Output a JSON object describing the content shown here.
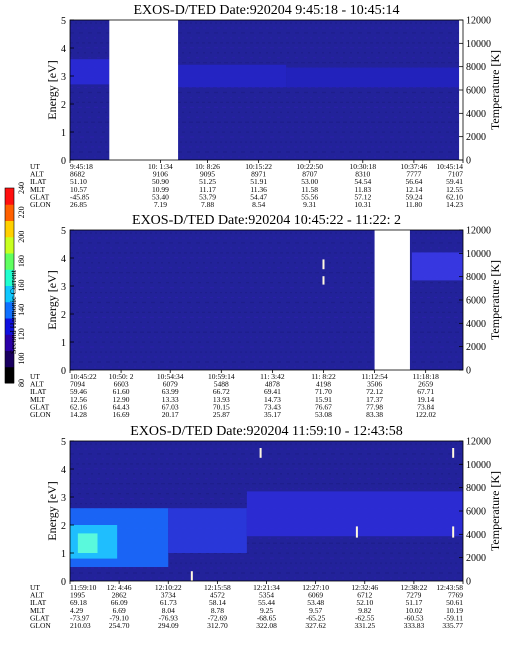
{
  "colorbar": {
    "label": "Second Harmonic Current",
    "ticks": [
      "80",
      "100",
      "120",
      "140",
      "160",
      "180",
      "200",
      "220",
      "240"
    ],
    "colors": [
      "#000000",
      "#1a0060",
      "#2b00a8",
      "#1010e0",
      "#1070ff",
      "#10c8ff",
      "#20ffd0",
      "#60ff60",
      "#c8ff20",
      "#ffd000",
      "#ff6000",
      "#ff1010"
    ]
  },
  "panels": [
    {
      "title": "EXOS-D/TED   Date:920204   9:45:18 - 10:45:14",
      "ylabel": "Energy [eV]",
      "y2label": "Temperature [K]",
      "yticks": [
        "0",
        "1",
        "2",
        "3",
        "4",
        "5"
      ],
      "y2ticks": [
        "0",
        "2000",
        "4000",
        "6000",
        "8000",
        "10000",
        "12000"
      ],
      "gaps": [
        [
          0.1,
          0.275
        ],
        [
          0.99,
          1.0
        ]
      ],
      "bands": [
        {
          "x": [
            0.0,
            0.1
          ],
          "e0": 2.7,
          "e1": 3.6,
          "color": "#2a2ad8"
        },
        {
          "x": [
            0.275,
            0.55
          ],
          "e0": 2.6,
          "e1": 3.4,
          "color": "#2525c8"
        },
        {
          "x": [
            0.55,
            0.99
          ],
          "e0": 2.6,
          "e1": 3.3,
          "color": "#2222c0"
        }
      ],
      "spikes": [],
      "table": {
        "labels": [
          "UT",
          "ALT",
          "ILAT",
          "MLT",
          "GLAT",
          "GLON"
        ],
        "columns": [
          {
            "x": 0.0,
            "values": [
              "9:45:18",
              "8682",
              "51.10",
              "10.57",
              "-45.85",
              "26.85"
            ]
          },
          {
            "x": 0.23,
            "values": [
              "10: 1:34",
              "9106",
              "50.90",
              "10.99",
              "53.40",
              "7.19"
            ]
          },
          {
            "x": 0.35,
            "values": [
              "10: 8:26",
              "9095",
              "51.25",
              "11.17",
              "53.79",
              "7.88"
            ]
          },
          {
            "x": 0.48,
            "values": [
              "10:15:22",
              "8971",
              "51.91",
              "11.36",
              "54.47",
              "8.54"
            ]
          },
          {
            "x": 0.61,
            "values": [
              "10:22:50",
              "8707",
              "53.00",
              "11.58",
              "55.56",
              "9.31"
            ]
          },
          {
            "x": 0.745,
            "values": [
              "10:30:18",
              "8310",
              "54.54",
              "11.83",
              "57.12",
              "10.31"
            ]
          },
          {
            "x": 0.875,
            "values": [
              "10:37:46",
              "7777",
              "56.64",
              "12.14",
              "59.24",
              "11.80"
            ]
          },
          {
            "x": 1.0,
            "values": [
              "10:45:14",
              "7107",
              "59.41",
              "12.55",
              "62.10",
              "14.23"
            ]
          }
        ]
      }
    },
    {
      "title": "EXOS-D/TED   Date:920204   10:45:22 - 11:22: 2",
      "ylabel": "Energy [eV]",
      "y2label": "Temperature [K]",
      "yticks": [
        "0",
        "1",
        "2",
        "3",
        "4",
        "5"
      ],
      "y2ticks": [
        "0",
        "2000",
        "4000",
        "6000",
        "8000",
        "10000",
        "12000"
      ],
      "gaps": [
        [
          0.775,
          0.865
        ]
      ],
      "bands": [
        {
          "x": [
            0.87,
            1.0
          ],
          "e0": 3.2,
          "e1": 4.2,
          "color": "#3a3ae8"
        }
      ],
      "spikes": [
        {
          "x": 0.645,
          "e0": 3.6,
          "e1": 3.95
        },
        {
          "x": 0.645,
          "e0": 3.05,
          "e1": 3.35
        }
      ],
      "table": {
        "labels": [
          "UT",
          "ALT",
          "ILAT",
          "MLT",
          "GLAT",
          "GLON"
        ],
        "columns": [
          {
            "x": 0.0,
            "values": [
              "10:45:22",
              "7094",
              "59.46",
              "12.56",
              "62.16",
              "14.28"
            ]
          },
          {
            "x": 0.13,
            "values": [
              "10:50: 2",
              "6603",
              "61.60",
              "12.90",
              "64.43",
              "16.69"
            ]
          },
          {
            "x": 0.255,
            "values": [
              "10:54:34",
              "6079",
              "63.99",
              "13.33",
              "67.03",
              "20.17"
            ]
          },
          {
            "x": 0.385,
            "values": [
              "10:59:14",
              "5488",
              "66.72",
              "13.93",
              "70.15",
              "25.87"
            ]
          },
          {
            "x": 0.515,
            "values": [
              "11: 3:42",
              "4878",
              "69.41",
              "14.73",
              "73.43",
              "35.17"
            ]
          },
          {
            "x": 0.645,
            "values": [
              "11: 8:22",
              "4198",
              "71.70",
              "15.91",
              "76.67",
              "53.08"
            ]
          },
          {
            "x": 0.775,
            "values": [
              "11:12:54",
              "3506",
              "72.12",
              "17.37",
              "77.98",
              "83.38"
            ]
          },
          {
            "x": 0.905,
            "values": [
              "11:18:18",
              "2659",
              "67.71",
              "19.14",
              "73.84",
              "122.02"
            ]
          }
        ]
      }
    },
    {
      "title": "EXOS-D/TED   Date:920204   11:59:10 - 12:43:58",
      "ylabel": "Energy [eV]",
      "y2label": "Temperature [K]",
      "yticks": [
        "0",
        "1",
        "2",
        "3",
        "4",
        "5"
      ],
      "y2ticks": [
        "0",
        "2000",
        "4000",
        "6000",
        "8000",
        "10000",
        "12000"
      ],
      "gaps": [],
      "bands": [
        {
          "x": [
            0.0,
            0.25
          ],
          "e0": 0.5,
          "e1": 2.6,
          "color": "#1a6cff"
        },
        {
          "x": [
            0.0,
            0.12
          ],
          "e0": 0.8,
          "e1": 2.0,
          "color": "#20c8ff"
        },
        {
          "x": [
            0.02,
            0.07
          ],
          "e0": 1.0,
          "e1": 1.7,
          "color": "#60ffd8"
        },
        {
          "x": [
            0.25,
            0.45
          ],
          "e0": 1.0,
          "e1": 2.6,
          "color": "#2a3ae0"
        },
        {
          "x": [
            0.45,
            1.0
          ],
          "e0": 1.6,
          "e1": 3.2,
          "color": "#2c2cd8"
        }
      ],
      "spikes": [
        {
          "x": 0.31,
          "e0": 0.0,
          "e1": 0.35
        },
        {
          "x": 0.485,
          "e0": 4.4,
          "e1": 4.75
        },
        {
          "x": 0.73,
          "e0": 1.55,
          "e1": 1.95
        },
        {
          "x": 0.975,
          "e0": 4.4,
          "e1": 4.75
        },
        {
          "x": 0.975,
          "e0": 1.55,
          "e1": 1.95
        }
      ],
      "table": {
        "labels": [
          "UT",
          "ALT",
          "ILAT",
          "MLT",
          "GLAT",
          "GLON"
        ],
        "columns": [
          {
            "x": 0.0,
            "values": [
              "11:59:10",
              "1995",
              "69.18",
              "4.29",
              "-73.97",
              "210.03"
            ]
          },
          {
            "x": 0.125,
            "values": [
              "12: 4:46",
              "2862",
              "66.09",
              "6.69",
              "-79.10",
              "254.70"
            ]
          },
          {
            "x": 0.25,
            "values": [
              "12:10:22",
              "3734",
              "61.73",
              "8.04",
              "-76.93",
              "294.09"
            ]
          },
          {
            "x": 0.375,
            "values": [
              "12:15:58",
              "4572",
              "58.14",
              "8.78",
              "-72.69",
              "312.70"
            ]
          },
          {
            "x": 0.5,
            "values": [
              "12:21:34",
              "5354",
              "55.44",
              "9.25",
              "-68.65",
              "322.08"
            ]
          },
          {
            "x": 0.625,
            "values": [
              "12:27:10",
              "6069",
              "53.48",
              "9.57",
              "-65.25",
              "327.62"
            ]
          },
          {
            "x": 0.75,
            "values": [
              "12:32:46",
              "6712",
              "52.10",
              "9.82",
              "-62.55",
              "331.25"
            ]
          },
          {
            "x": 0.875,
            "values": [
              "12:38:22",
              "7279",
              "51.17",
              "10.02",
              "-60.53",
              "333.83"
            ]
          },
          {
            "x": 1.0,
            "values": [
              "12:43:58",
              "7769",
              "50.61",
              "10.19",
              "-59.11",
              "335.77"
            ]
          }
        ]
      }
    }
  ]
}
